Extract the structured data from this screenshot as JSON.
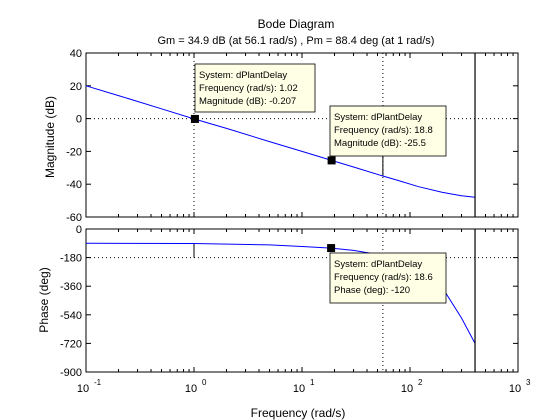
{
  "figure": {
    "title": "Bode Diagram",
    "subtitle": "Gm = 34.9 dB (at 56.1 rad/s) ,  Pm = 88.4 deg (at 1 rad/s)",
    "background": "#ffffff",
    "line_color": "#0000ff"
  },
  "chart_data": [
    {
      "name": "magnitude-plot",
      "type": "line",
      "ylabel": "Magnitude (dB)",
      "xscale": "log",
      "xlim": [
        0.1,
        1000
      ],
      "ylim": [
        -60,
        40
      ],
      "yticks": [
        {
          "v": 40,
          "label": "40"
        },
        {
          "v": 20,
          "label": "20"
        },
        {
          "v": 0,
          "label": "0"
        },
        {
          "v": -20,
          "label": "-20"
        },
        {
          "v": -40,
          "label": "-40"
        },
        {
          "v": -60,
          "label": "-60"
        }
      ],
      "grid": false,
      "series": [
        {
          "x": [
            0.1,
            0.2,
            0.5,
            1,
            2,
            5,
            10,
            18.8,
            30,
            56.1,
            80,
            120,
            200,
            300,
            400
          ],
          "y": [
            20,
            14,
            6,
            -0.2,
            -6,
            -14,
            -20,
            -25.5,
            -29.5,
            -35,
            -38,
            -41.5,
            -45,
            -47,
            -48
          ]
        }
      ],
      "reference_lines": [
        {
          "axis": "y",
          "value": 0
        },
        {
          "axis": "x",
          "value": 1
        },
        {
          "axis": "x",
          "value": 56.1
        }
      ],
      "vertical_line": 400,
      "gain_margin_marker": {
        "x": 56.1,
        "y_from": -35,
        "y_to": -20
      },
      "datatips": [
        {
          "x": 1.02,
          "y": -0.207,
          "line1": "System: dPlantDelay",
          "line2": "Frequency (rad/s): 1.02",
          "line3": "Magnitude (dB): -0.207"
        },
        {
          "x": 18.8,
          "y": -25.5,
          "line1": "System: dPlantDelay",
          "line2": "Frequency (rad/s): 18.8",
          "line3": "Magnitude (dB): -25.5"
        }
      ]
    },
    {
      "name": "phase-plot",
      "type": "line",
      "ylabel": "Phase (deg)",
      "xlabel": "Frequency  (rad/s)",
      "xscale": "log",
      "xlim": [
        0.1,
        1000
      ],
      "ylim": [
        -900,
        0
      ],
      "yticks": [
        {
          "v": 0,
          "label": "0"
        },
        {
          "v": -180,
          "label": "-180"
        },
        {
          "v": -360,
          "label": "-360"
        },
        {
          "v": -540,
          "label": "-540"
        },
        {
          "v": -720,
          "label": "-720"
        },
        {
          "v": -900,
          "label": "-900"
        }
      ],
      "xticks": [
        {
          "v": 0.1,
          "base": "10",
          "exp": "-1"
        },
        {
          "v": 1,
          "base": "10",
          "exp": "0"
        },
        {
          "v": 10,
          "base": "10",
          "exp": "1"
        },
        {
          "v": 100,
          "base": "10",
          "exp": "2"
        },
        {
          "v": 1000,
          "base": "10",
          "exp": "3"
        }
      ],
      "grid": false,
      "series": [
        {
          "x": [
            0.1,
            1,
            5,
            10,
            18.6,
            30,
            50,
            80,
            120,
            200,
            300,
            400
          ],
          "y": [
            -90,
            -91,
            -100,
            -110,
            -120,
            -135,
            -160,
            -200,
            -255,
            -370,
            -560,
            -720
          ]
        }
      ],
      "reference_lines": [
        {
          "axis": "y",
          "value": -180
        },
        {
          "axis": "x",
          "value": 56.1
        }
      ],
      "vertical_line": 400,
      "phase_margin_marker": {
        "x": 1,
        "y_from": -91,
        "y_to": -180
      },
      "datatips": [
        {
          "x": 18.6,
          "y": -120,
          "line1": "System: dPlantDelay",
          "line2": "Frequency (rad/s): 18.6",
          "line3": "Phase (deg): -120"
        }
      ]
    }
  ]
}
